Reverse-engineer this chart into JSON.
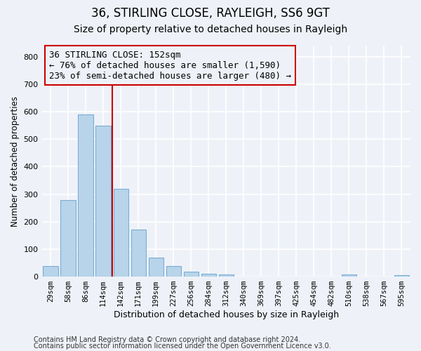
{
  "title": "36, STIRLING CLOSE, RAYLEIGH, SS6 9GT",
  "subtitle": "Size of property relative to detached houses in Rayleigh",
  "xlabel": "Distribution of detached houses by size in Rayleigh",
  "ylabel": "Number of detached properties",
  "bin_labels": [
    "29sqm",
    "58sqm",
    "86sqm",
    "114sqm",
    "142sqm",
    "171sqm",
    "199sqm",
    "227sqm",
    "256sqm",
    "284sqm",
    "312sqm",
    "340sqm",
    "369sqm",
    "397sqm",
    "425sqm",
    "454sqm",
    "482sqm",
    "510sqm",
    "538sqm",
    "567sqm",
    "595sqm"
  ],
  "bar_heights": [
    38,
    278,
    590,
    550,
    320,
    170,
    68,
    38,
    18,
    10,
    8,
    0,
    0,
    0,
    0,
    0,
    0,
    8,
    0,
    0,
    5
  ],
  "bar_color": "#b8d4ea",
  "bar_edge_color": "#7aadd4",
  "vline_x": 3.5,
  "vline_color": "#cc0000",
  "annotation_line1": "36 STIRLING CLOSE: 152sqm",
  "annotation_line2": "← 76% of detached houses are smaller (1,590)",
  "annotation_line3": "23% of semi-detached houses are larger (480) →",
  "annotation_box_color": "#cc0000",
  "ylim": [
    0,
    840
  ],
  "yticks": [
    0,
    100,
    200,
    300,
    400,
    500,
    600,
    700,
    800
  ],
  "footer_line1": "Contains HM Land Registry data © Crown copyright and database right 2024.",
  "footer_line2": "Contains public sector information licensed under the Open Government Licence v3.0.",
  "background_color": "#eef2f8",
  "grid_color": "#ffffff",
  "title_fontsize": 12,
  "subtitle_fontsize": 10,
  "annotation_fontsize": 9,
  "footer_fontsize": 7
}
